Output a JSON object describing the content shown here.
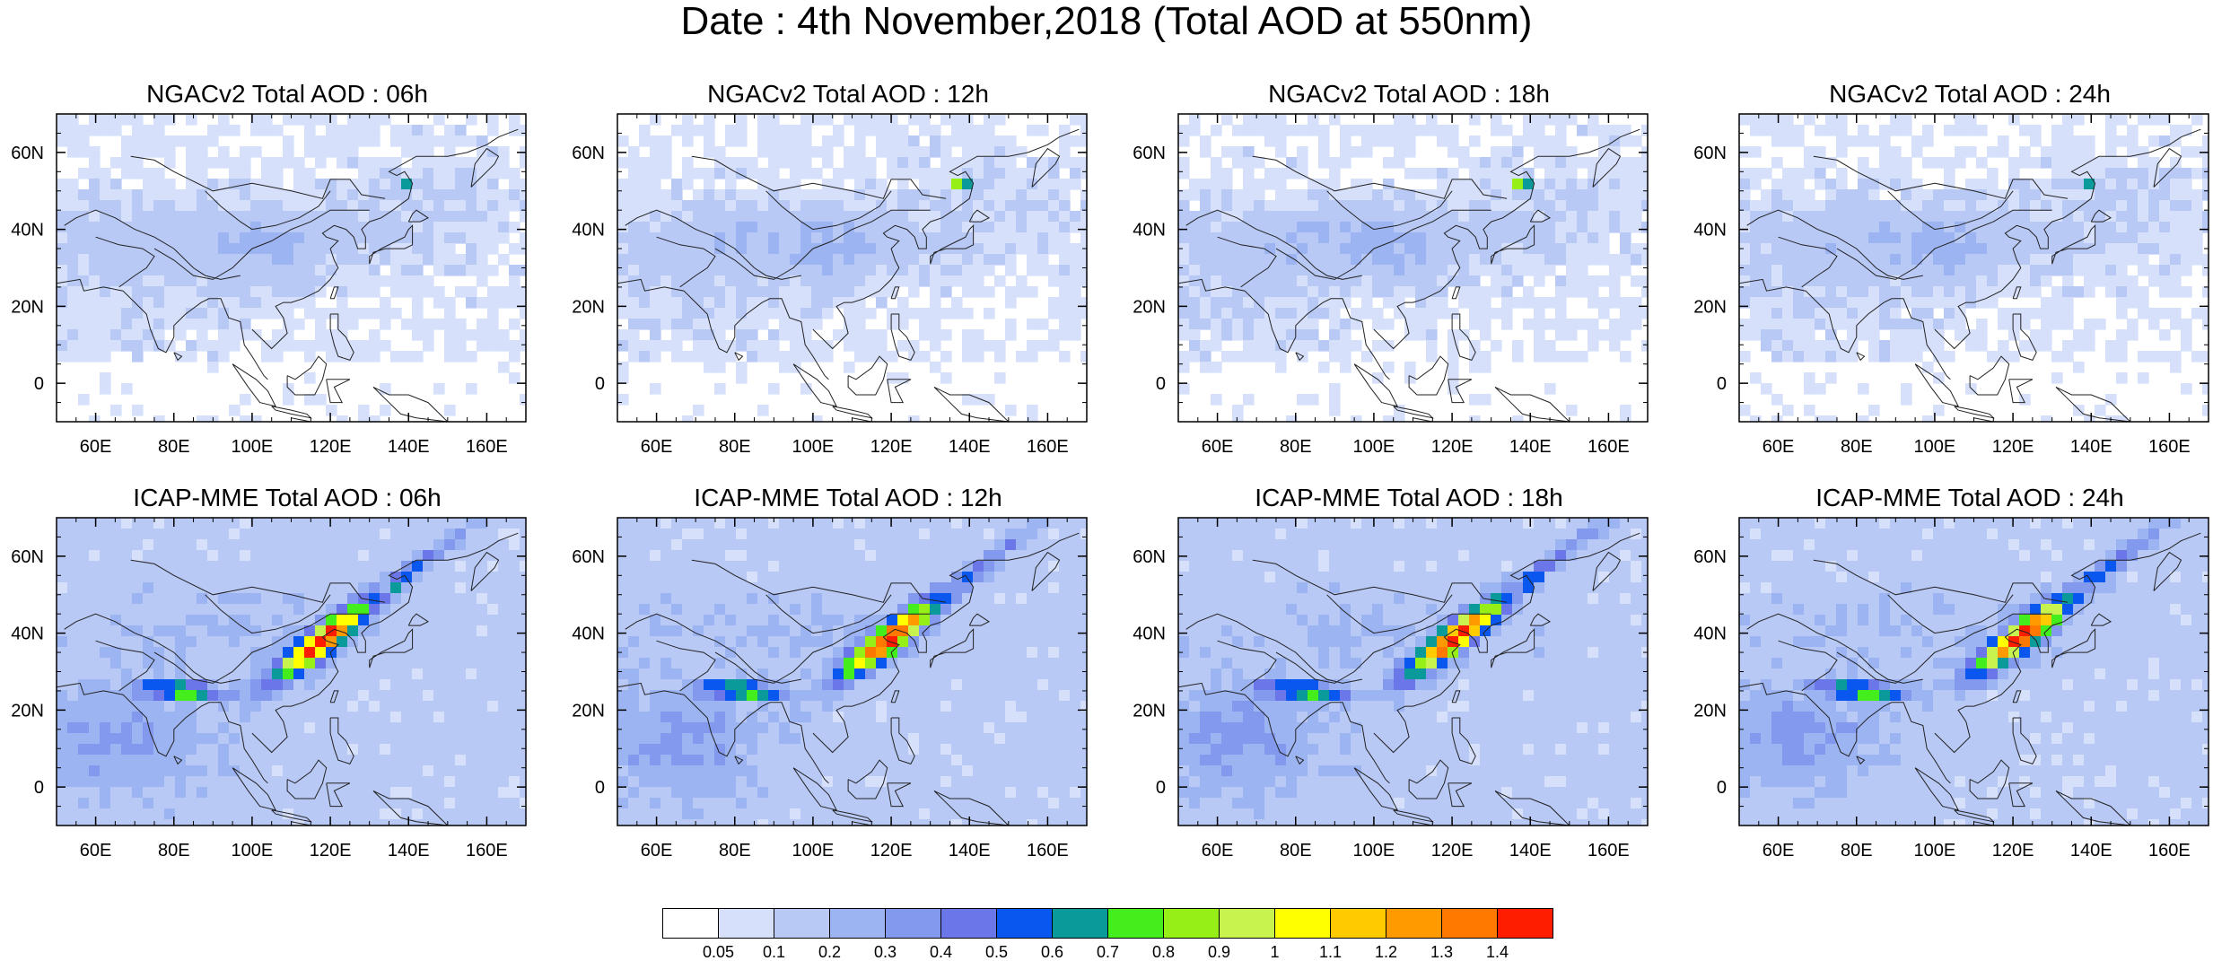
{
  "title": "Date : 4th November,2018 (Total AOD at 550nm)",
  "panels": [
    {
      "title": "NGACv2 Total AOD : 06h",
      "model": "NGACv2",
      "hour": "06h"
    },
    {
      "title": "NGACv2 Total AOD : 12h",
      "model": "NGACv2",
      "hour": "12h"
    },
    {
      "title": "NGACv2 Total AOD : 18h",
      "model": "NGACv2",
      "hour": "18h"
    },
    {
      "title": "NGACv2 Total AOD : 24h",
      "model": "NGACv2",
      "hour": "24h"
    },
    {
      "title": "ICAP-MME Total AOD : 06h",
      "model": "ICAP-MME",
      "hour": "06h"
    },
    {
      "title": "ICAP-MME Total AOD : 12h",
      "model": "ICAP-MME",
      "hour": "12h"
    },
    {
      "title": "ICAP-MME Total AOD : 18h",
      "model": "ICAP-MME",
      "hour": "18h"
    },
    {
      "title": "ICAP-MME Total AOD : 24h",
      "model": "ICAP-MME",
      "hour": "24h"
    }
  ],
  "map": {
    "lon_range": [
      50,
      170
    ],
    "lat_range": [
      -10,
      70
    ],
    "lon_ticks": [
      60,
      80,
      100,
      120,
      140,
      160
    ],
    "lon_tick_labels": [
      "60E",
      "80E",
      "100E",
      "120E",
      "140E",
      "160E"
    ],
    "lat_ticks": [
      0,
      20,
      40,
      60
    ],
    "lat_tick_labels": [
      "0",
      "20N",
      "40N",
      "60N"
    ]
  },
  "colorbar": {
    "labels": [
      "0.05",
      "0.1",
      "0.2",
      "0.3",
      "0.4",
      "0.5",
      "0.6",
      "0.7",
      "0.8",
      "0.9",
      "1",
      "1.1",
      "1.2",
      "1.3",
      "1.4"
    ],
    "colors": [
      "#ffffff",
      "#d6e0fb",
      "#b8c9f6",
      "#9db4f2",
      "#8399ed",
      "#6b77e8",
      "#0a57f0",
      "#0b9a9a",
      "#44ee1c",
      "#96f018",
      "#c8f24e",
      "#ffff00",
      "#ffca00",
      "#ff9a00",
      "#ff7800",
      "#ff1d00"
    ]
  }
}
